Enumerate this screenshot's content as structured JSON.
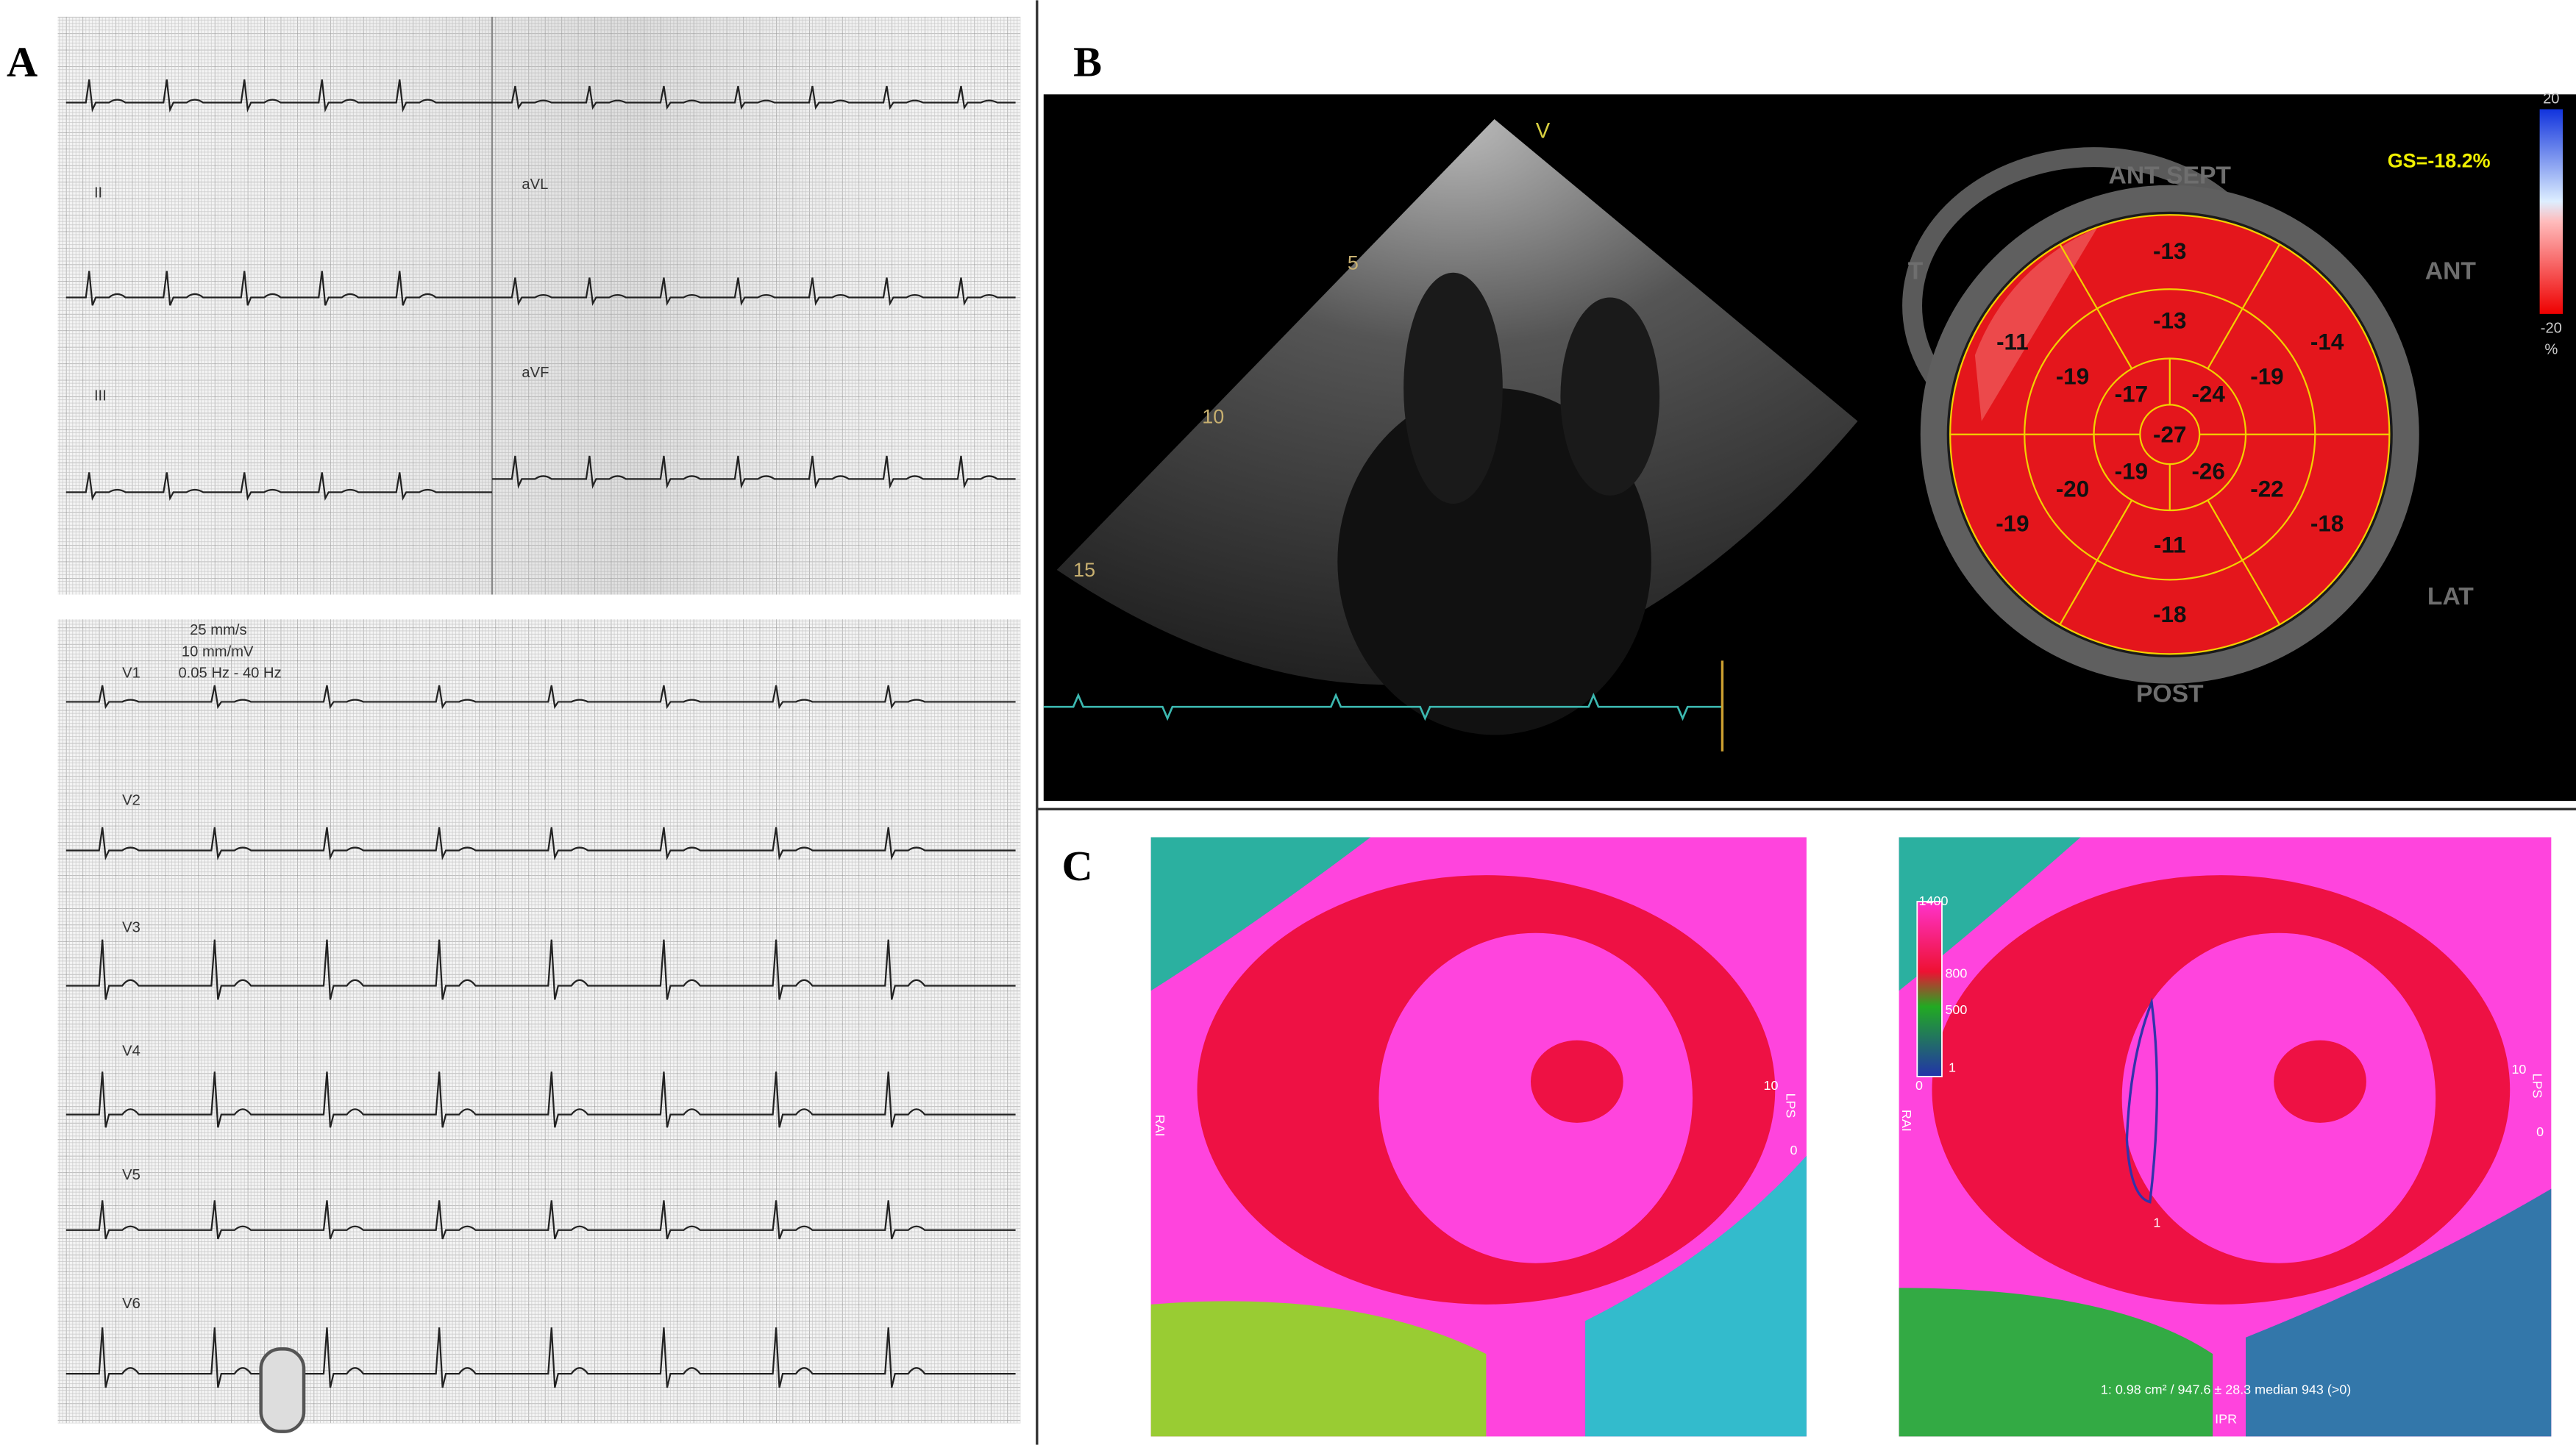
{
  "panels": {
    "a": {
      "label": "A",
      "leads_top": [
        "II",
        "III",
        "aVL",
        "aVF"
      ],
      "calibration": [
        "25 mm/s",
        "10 mm/mV",
        "0.05 Hz - 40 Hz"
      ],
      "leads_bottom": [
        "V1",
        "V2",
        "V3",
        "V4",
        "V5",
        "V6"
      ]
    },
    "b": {
      "label": "B",
      "depth_marks": [
        "5",
        "10",
        "15"
      ],
      "probe_marker": "V",
      "global_strain": "GS=-18.2%",
      "scale_max": "20",
      "scale_min": "-20",
      "scale_unit": "%",
      "orientation": {
        "ant_sept": "ANT SEPT",
        "ant": "ANT",
        "lat": "LAT",
        "post": "POST",
        "sept": "T"
      },
      "bullseye": {
        "basal": [
          -13,
          -14,
          -18,
          -18,
          -19,
          -11
        ],
        "mid": [
          -13,
          -19,
          -22,
          -11,
          -20,
          -19
        ],
        "apical": [
          -17,
          -24,
          -26,
          -19
        ],
        "apex": -27
      }
    },
    "c": {
      "label": "C",
      "orient_left": "RAI",
      "orient_right": "LPS",
      "scale_right_top": "10",
      "scale_right_bottom": "0",
      "legend": [
        "1400",
        "800",
        "500",
        "1",
        "0"
      ],
      "roi_label": "1",
      "measurement": "1: 0.98 cm² / 947.6 ± 28.3 median 943 (>0)",
      "bottom_label": "IPR"
    }
  }
}
